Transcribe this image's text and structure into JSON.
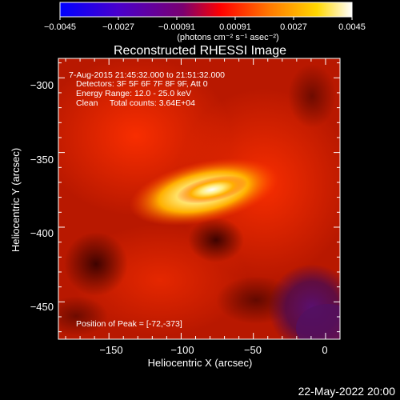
{
  "chart_data": {
    "type": "heatmap",
    "title": "Reconstructed RHESSI Image",
    "xlabel": "Heliocentric X (arcsec)",
    "ylabel": "Heliocentric Y (arcsec)",
    "xlim": [
      -185,
      10
    ],
    "ylim": [
      -475,
      -287
    ],
    "xticks": [
      "−150",
      "−100",
      "−50",
      "0"
    ],
    "yticks": [
      "−300",
      "−350",
      "−400",
      "−450"
    ],
    "xtick_values": [
      -150,
      -100,
      -50,
      0
    ],
    "ytick_values": [
      -300,
      -350,
      -400,
      -450
    ],
    "colorbar": {
      "range": [
        -0.0045,
        0.0045
      ],
      "ticks": [
        "−0.0045",
        "−0.0027",
        "−0.00091",
        "0.00091",
        "0.0027",
        "0.0045"
      ],
      "label": "(photons cm⁻² s⁻¹ asec⁻²)",
      "colormap": [
        "#0000ff",
        "#4a00cc",
        "#7a0070",
        "#ff0000",
        "#ff7a00",
        "#ffd700",
        "#ffffff"
      ]
    },
    "annotations": {
      "time_range": "7-Aug-2015 21:45:32.000 to 21:51:32.000",
      "detectors": "Detectors: 3F 5F 6F 7F 8F 9F, Att 0",
      "energy_range": "Energy Range: 12.0 - 25.0 keV",
      "clean_counts": "Clean     Total counts: 3.64E+04",
      "peak": "Position of Peak = [-72,-373]"
    },
    "peak": {
      "x": -72,
      "y": -373
    },
    "footer_date": "22-May-2022 20:00"
  }
}
